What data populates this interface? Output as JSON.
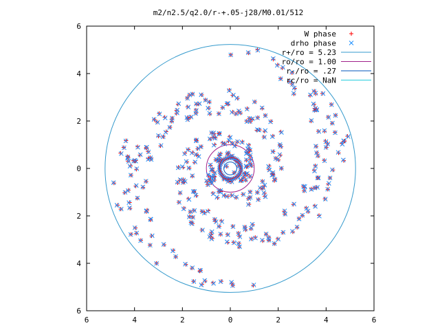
{
  "chart_data": {
    "type": "scatter",
    "title": "m2/n2.5/q2.0/r-+.05-j28/M0.01/512",
    "xlim": [
      -6,
      6
    ],
    "ylim": [
      -6,
      6
    ],
    "x_ticks": [
      -6,
      -4,
      -2,
      0,
      2,
      4,
      6
    ],
    "y_ticks": [
      -6,
      -4,
      -2,
      0,
      2,
      4,
      6
    ],
    "x_tick_labels": [
      "6",
      "4",
      "2",
      "0",
      "2",
      "4",
      "6"
    ],
    "y_tick_labels": [
      "6",
      "4",
      "2",
      "0",
      "2",
      "4",
      "6"
    ],
    "grid": false,
    "legend_position": "top-right",
    "series": [
      {
        "name": "W phase",
        "marker": "+",
        "color": "#ff0000"
      },
      {
        "name": "drho phase",
        "marker": "x",
        "color": "#1e90ff"
      }
    ],
    "circles": [
      {
        "label": "r+/ro = 5.23",
        "radius": 5.23,
        "color": "#3399cc"
      },
      {
        "label": "ro/ro = 1.00",
        "radius": 1.0,
        "color": "#a0208a"
      },
      {
        "label": "r-/ro = .27",
        "radius": 0.27,
        "color": "#0055bb"
      },
      {
        "label": "rc/ro = NaN",
        "radius": null,
        "color": "#22ccdd"
      }
    ],
    "spiral": {
      "arms": 2,
      "pattern_speed_note": "points distributed over r in [0.3, 5.2]"
    }
  }
}
